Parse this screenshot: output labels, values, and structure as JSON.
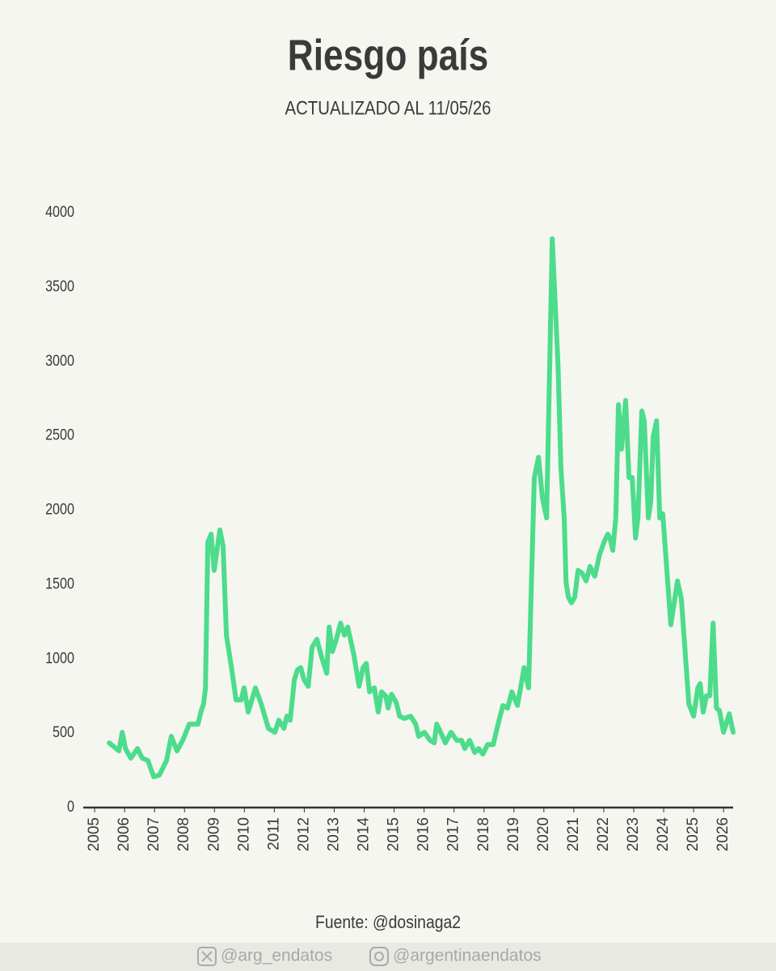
{
  "chart_data": {
    "type": "line",
    "title": "Riesgo país",
    "subtitle": "ACTUALIZADO AL 11/05/26",
    "source": "Fuente: @dosinaga2",
    "color": "#4cdc8c",
    "x": [
      2005.49,
      2005.81,
      2005.92,
      2006.03,
      2006.21,
      2006.43,
      2006.59,
      2006.78,
      2006.97,
      2007.16,
      2007.4,
      2007.56,
      2007.75,
      2007.94,
      2008.16,
      2008.45,
      2008.56,
      2008.64,
      2008.7,
      2008.78,
      2008.89,
      2008.99,
      2009.18,
      2009.29,
      2009.4,
      2009.59,
      2009.72,
      2009.89,
      2009.99,
      2010.13,
      2010.37,
      2010.56,
      2010.8,
      2011.02,
      2011.15,
      2011.32,
      2011.42,
      2011.53,
      2011.67,
      2011.77,
      2011.88,
      2011.99,
      2012.13,
      2012.26,
      2012.42,
      2012.58,
      2012.75,
      2012.83,
      2012.94,
      2013.07,
      2013.21,
      2013.34,
      2013.45,
      2013.66,
      2013.83,
      2013.96,
      2014.07,
      2014.18,
      2014.34,
      2014.47,
      2014.58,
      2014.72,
      2014.8,
      2014.91,
      2015.07,
      2015.18,
      2015.34,
      2015.55,
      2015.72,
      2015.82,
      2016.01,
      2016.2,
      2016.34,
      2016.42,
      2016.52,
      2016.71,
      2016.9,
      2017.09,
      2017.25,
      2017.36,
      2017.52,
      2017.69,
      2017.82,
      2017.96,
      2018.12,
      2018.31,
      2018.47,
      2018.63,
      2018.79,
      2018.93,
      2019.12,
      2019.34,
      2019.49,
      2019.68,
      2019.82,
      2019.95,
      2020.09,
      2020.28,
      2020.47,
      2020.57,
      2020.68,
      2020.74,
      2020.82,
      2020.92,
      2021.03,
      2021.14,
      2021.27,
      2021.41,
      2021.54,
      2021.7,
      2021.86,
      2022.03,
      2022.13,
      2022.21,
      2022.3,
      2022.4,
      2022.49,
      2022.59,
      2022.73,
      2022.84,
      2022.95,
      2023.06,
      2023.14,
      2023.27,
      2023.35,
      2023.49,
      2023.57,
      2023.65,
      2023.76,
      2023.87,
      2023.97,
      2024.24,
      2024.46,
      2024.59,
      2024.84,
      2025.0,
      2025.14,
      2025.22,
      2025.32,
      2025.43,
      2025.54,
      2025.65,
      2025.76,
      2025.86,
      2026.0,
      2026.19,
      2026.32
    ],
    "values": [
      435,
      381,
      506,
      397,
      332,
      397,
      332,
      316,
      207,
      218,
      316,
      479,
      381,
      452,
      561,
      561,
      653,
      697,
      805,
      1785,
      1839,
      1595,
      1867,
      1758,
      1159,
      914,
      724,
      724,
      805,
      642,
      805,
      697,
      533,
      506,
      588,
      533,
      615,
      588,
      860,
      925,
      941,
      860,
      816,
      1078,
      1132,
      1012,
      903,
      1214,
      1050,
      1132,
      1241,
      1159,
      1214,
      1023,
      816,
      941,
      969,
      778,
      805,
      642,
      778,
      751,
      669,
      762,
      707,
      615,
      599,
      615,
      561,
      479,
      506,
      452,
      435,
      561,
      522,
      435,
      506,
      452,
      452,
      397,
      452,
      370,
      397,
      359,
      424,
      424,
      561,
      686,
      669,
      778,
      686,
      941,
      805,
      2220,
      2356,
      2084,
      1948,
      3826,
      2982,
      2275,
      1948,
      1513,
      1415,
      1377,
      1415,
      1595,
      1578,
      1524,
      1622,
      1556,
      1703,
      1796,
      1839,
      1812,
      1730,
      1948,
      2710,
      2411,
      2738,
      2220,
      2220,
      1812,
      1948,
      2667,
      2601,
      1948,
      2057,
      2493,
      2601,
      1948,
      1976,
      1230,
      1524,
      1404,
      697,
      615,
      805,
      833,
      642,
      751,
      751,
      1241,
      669,
      653,
      506,
      631,
      506
    ],
    "xlim": [
      2004.62,
      2026.32
    ],
    "xticks": [
      2005,
      2006,
      2007,
      2008,
      2009,
      2010,
      2011,
      2012,
      2013,
      2014,
      2015,
      2016,
      2017,
      2018,
      2019,
      2020,
      2021,
      2022,
      2023,
      2024,
      2025,
      2026
    ],
    "ylim": [
      0,
      4000
    ],
    "yticks": [
      0,
      500,
      1000,
      1500,
      2000,
      2500,
      3000,
      3500,
      4000
    ]
  },
  "footer": {
    "twitter": "@arg_endatos",
    "instagram": "@argentinaendatos"
  }
}
